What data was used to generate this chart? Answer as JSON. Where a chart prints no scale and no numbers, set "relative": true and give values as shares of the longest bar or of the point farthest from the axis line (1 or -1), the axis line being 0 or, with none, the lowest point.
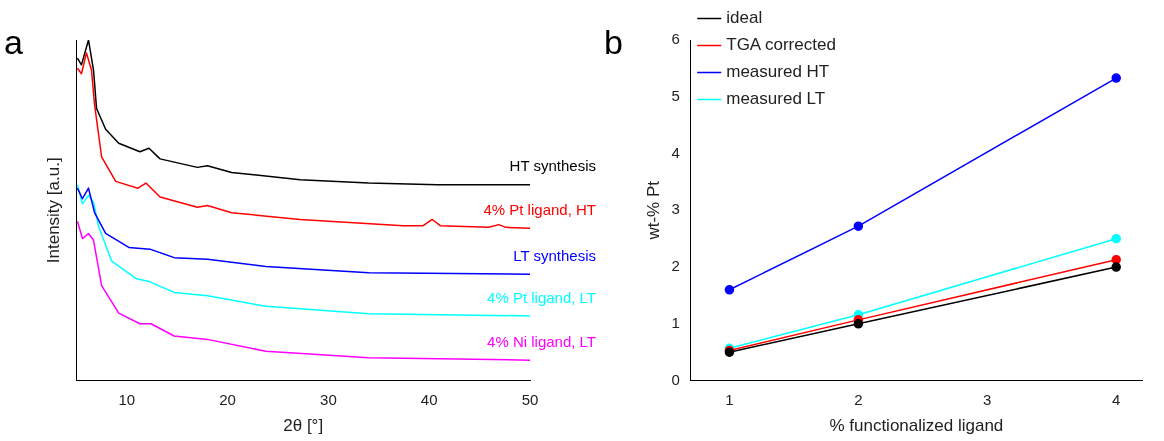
{
  "chart_data": [
    {
      "type": "line",
      "annotations": [
        "a"
      ],
      "xlabel": "2θ [°]",
      "ylabel": "Intensity [a.u.]",
      "relative": true,
      "xlim": [
        5,
        50
      ],
      "xticks": [
        10,
        20,
        30,
        40,
        50
      ],
      "grid": false,
      "legend": false,
      "marker": "none",
      "series": [
        {
          "name": "HT synthesis",
          "color": "#000000",
          "x": [
            5.1,
            5.5,
            6.2,
            6.7,
            7.0,
            7.9,
            9.2,
            11.3,
            12.2,
            13.3,
            17.0,
            18.0,
            20.4,
            27.2,
            34.0,
            40.8,
            50
          ],
          "values": [
            0.947,
            0.927,
            1.0,
            0.911,
            0.799,
            0.738,
            0.697,
            0.672,
            0.682,
            0.651,
            0.626,
            0.631,
            0.611,
            0.59,
            0.58,
            0.575,
            0.575
          ]
        },
        {
          "name": "4% Pt ligand, HT",
          "color": "#ff0000",
          "x": [
            5.1,
            5.5,
            6.0,
            6.5,
            6.8,
            7.5,
            8.9,
            11.1,
            11.9,
            13.3,
            17.0,
            18.0,
            20.4,
            27.2,
            37.4,
            39.4,
            40.3,
            41.1,
            45.9,
            46.9,
            47.6,
            50
          ],
          "values": [
            0.917,
            0.901,
            0.962,
            0.911,
            0.81,
            0.657,
            0.585,
            0.565,
            0.58,
            0.539,
            0.509,
            0.514,
            0.493,
            0.473,
            0.455,
            0.455,
            0.473,
            0.455,
            0.45,
            0.458,
            0.45,
            0.447
          ]
        },
        {
          "name": "LT synthesis",
          "color": "#0000ff",
          "x": [
            5.1,
            5.6,
            6.2,
            6.8,
            7.9,
            10.2,
            12.3,
            14.7,
            18.0,
            23.8,
            34.0,
            50
          ],
          "values": [
            0.565,
            0.534,
            0.565,
            0.493,
            0.432,
            0.391,
            0.386,
            0.361,
            0.356,
            0.335,
            0.317,
            0.312
          ]
        },
        {
          "name": "4% Pt ligand, LT",
          "color": "#00ffff",
          "x": [
            5.1,
            5.6,
            6.2,
            6.7,
            7.2,
            8.5,
            10.9,
            12.3,
            14.7,
            18.0,
            23.8,
            34.0,
            50
          ],
          "values": [
            0.575,
            0.519,
            0.544,
            0.524,
            0.453,
            0.351,
            0.3,
            0.29,
            0.259,
            0.249,
            0.218,
            0.196,
            0.19
          ]
        },
        {
          "name": "4% Ni ligand, LT",
          "color": "#ff00ff",
          "x": [
            5.1,
            5.6,
            6.2,
            6.7,
            7.5,
            9.2,
            11.3,
            12.4,
            14.7,
            18.0,
            23.8,
            34.0,
            50
          ],
          "values": [
            0.468,
            0.417,
            0.432,
            0.412,
            0.279,
            0.198,
            0.167,
            0.167,
            0.131,
            0.121,
            0.086,
            0.067,
            0.06
          ]
        }
      ]
    },
    {
      "type": "line",
      "annotations": [
        "b"
      ],
      "xlabel": "% functionalized ligand",
      "ylabel": "wt-% Pt",
      "xlim": [
        0.7,
        4.2
      ],
      "xticks": [
        1,
        2,
        3,
        4
      ],
      "ylim": [
        0,
        6
      ],
      "yticks": [
        0,
        1,
        2,
        3,
        4,
        5,
        6
      ],
      "grid": false,
      "legend": "top left",
      "marker": "circle",
      "x": [
        1,
        2,
        4
      ],
      "series": [
        {
          "name": "ideal",
          "color": "#000000",
          "values": [
            0.5,
            1.0,
            2.0
          ]
        },
        {
          "name": "TGA corrected",
          "color": "#ff0000",
          "values": [
            0.53,
            1.07,
            2.13
          ]
        },
        {
          "name": "measured HT",
          "color": "#0000ff",
          "values": [
            1.6,
            2.72,
            5.33
          ]
        },
        {
          "name": "measured LT",
          "color": "#00ffff",
          "values": [
            0.57,
            1.16,
            2.5
          ]
        }
      ]
    }
  ]
}
